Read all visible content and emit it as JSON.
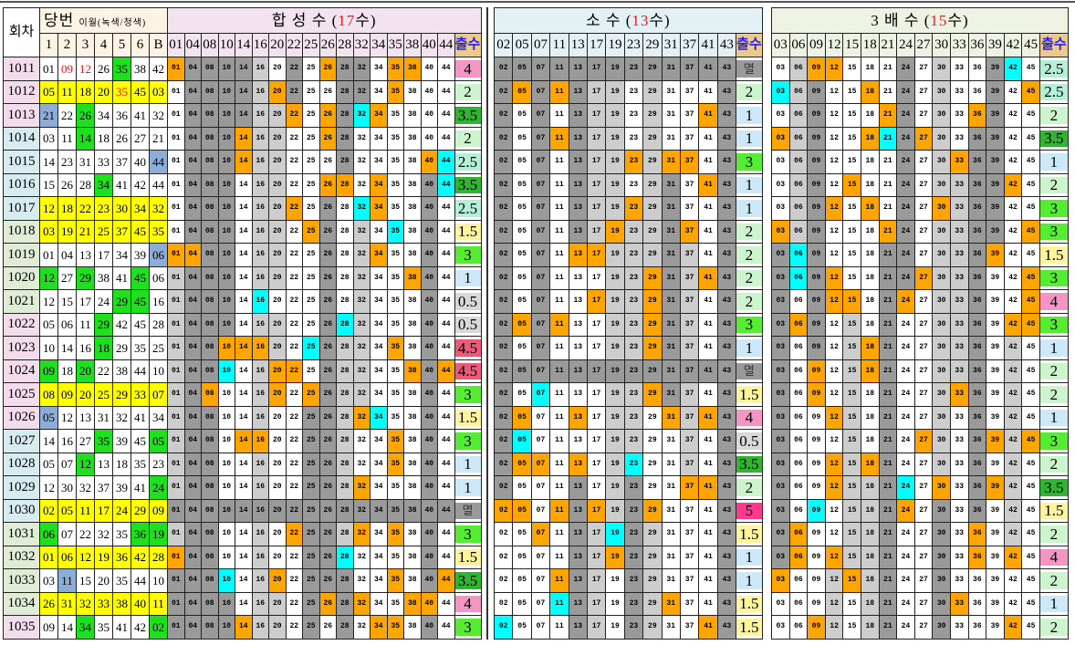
{
  "header": {
    "round": "회차",
    "draw": "당번",
    "draw_note": "이월(녹색/청색)",
    "count_label": "출수",
    "draw_cols": [
      "1",
      "2",
      "3",
      "4",
      "5",
      "6",
      "B"
    ]
  },
  "colors": {
    "orange": "#ffa500",
    "cyan": "#00ffff",
    "dark": "#9a9a9a",
    "light": "#cdcdcd",
    "white": "#ffffff",
    "yellow": "#ffff00",
    "green": "#1ee01e",
    "blue": "#8badd8",
    "red_text": "#f01818"
  },
  "count_colors": {
    "4": "#f595c4",
    "2": "#cdf5cd",
    "3.5": "#2fb52f",
    "2.5": "#b4f0d8",
    "1.5": "#fff49c",
    "3": "#55ec33",
    "1": "#cde8f8",
    "0.5": "#d9d9d9",
    "4.5": "#eb5a78",
    "5": "#ff3a8c",
    "멸": "#9a9a9a"
  },
  "rounds": [
    "1011",
    "1012",
    "1013",
    "1014",
    "1015",
    "1016",
    "1017",
    "1018",
    "1019",
    "1020",
    "1021",
    "1022",
    "1023",
    "1024",
    "1025",
    "1026",
    "1027",
    "1028",
    "1029",
    "1030",
    "1031",
    "1032",
    "1033",
    "1034",
    "1035"
  ],
  "round_colors": [
    "#f3dcec",
    "#f3dcec",
    "#f3dcec",
    "#d6ecf0",
    "#d6ecf0",
    "#d6ecf0",
    "#d6ecf0",
    "#e0ecd6",
    "#e0ecd6",
    "#e0ecd6",
    "#e0ecd6",
    "#f3dcec",
    "#f3dcec",
    "#f3dcec",
    "#f3dcec",
    "#f3dcec",
    "#d6ecf0",
    "#d6ecf0",
    "#d6ecf0",
    "#d6ecf0",
    "#e0ecd6",
    "#e0ecd6",
    "#e0ecd6",
    "#e0ecd6",
    "#f3dcec"
  ],
  "draws": [
    {
      "n": [
        "01",
        "09",
        "12",
        "26",
        "35",
        "38",
        "42"
      ],
      "c": "wwwwgww",
      "red": [
        1,
        2
      ]
    },
    {
      "n": [
        "05",
        "11",
        "18",
        "20",
        "35",
        "45",
        "03"
      ],
      "c": "yyyyyyy",
      "red": [
        4
      ]
    },
    {
      "n": [
        "21",
        "22",
        "26",
        "34",
        "36",
        "41",
        "32"
      ],
      "c": "bwgwwww"
    },
    {
      "n": [
        "03",
        "11",
        "14",
        "18",
        "26",
        "27",
        "21"
      ],
      "c": "wwgwwww"
    },
    {
      "n": [
        "14",
        "23",
        "31",
        "33",
        "37",
        "40",
        "44"
      ],
      "c": "wwwwwwb"
    },
    {
      "n": [
        "15",
        "26",
        "28",
        "34",
        "41",
        "42",
        "44"
      ],
      "c": "wwwgwww"
    },
    {
      "n": [
        "12",
        "18",
        "22",
        "23",
        "30",
        "34",
        "32"
      ],
      "c": "yyyyyyy"
    },
    {
      "n": [
        "03",
        "19",
        "21",
        "25",
        "37",
        "45",
        "35"
      ],
      "c": "yyyyyyy"
    },
    {
      "n": [
        "01",
        "04",
        "13",
        "17",
        "34",
        "39",
        "06"
      ],
      "c": "wwwwwwb"
    },
    {
      "n": [
        "12",
        "27",
        "29",
        "38",
        "41",
        "45",
        "06"
      ],
      "c": "gwgwwgw"
    },
    {
      "n": [
        "12",
        "15",
        "17",
        "24",
        "29",
        "45",
        "16"
      ],
      "c": "wwwwggw"
    },
    {
      "n": [
        "05",
        "06",
        "11",
        "29",
        "42",
        "45",
        "28"
      ],
      "c": "wwwgwww"
    },
    {
      "n": [
        "10",
        "14",
        "16",
        "18",
        "29",
        "35",
        "25"
      ],
      "c": "wwwgwww"
    },
    {
      "n": [
        "09",
        "18",
        "20",
        "22",
        "38",
        "44",
        "10"
      ],
      "c": "gwgwwww"
    },
    {
      "n": [
        "08",
        "09",
        "20",
        "25",
        "29",
        "33",
        "07"
      ],
      "c": "yyyyyyy"
    },
    {
      "n": [
        "05",
        "12",
        "13",
        "31",
        "32",
        "41",
        "34"
      ],
      "c": "bwwwwww"
    },
    {
      "n": [
        "14",
        "16",
        "27",
        "35",
        "39",
        "45",
        "05"
      ],
      "c": "wwwgwwg"
    },
    {
      "n": [
        "05",
        "07",
        "12",
        "13",
        "18",
        "35",
        "23"
      ],
      "c": "wwgwwww"
    },
    {
      "n": [
        "12",
        "30",
        "32",
        "37",
        "39",
        "41",
        "24"
      ],
      "c": "wwwwwwg"
    },
    {
      "n": [
        "02",
        "05",
        "11",
        "17",
        "24",
        "29",
        "09"
      ],
      "c": "yyyyyyy"
    },
    {
      "n": [
        "06",
        "07",
        "22",
        "32",
        "35",
        "36",
        "19"
      ],
      "c": "gwwwwgg"
    },
    {
      "n": [
        "01",
        "06",
        "12",
        "19",
        "36",
        "42",
        "28"
      ],
      "c": "yyyyyyy"
    },
    {
      "n": [
        "03",
        "11",
        "15",
        "20",
        "35",
        "44",
        "10"
      ],
      "c": "wbwwwww"
    },
    {
      "n": [
        "26",
        "31",
        "32",
        "33",
        "38",
        "40",
        "11"
      ],
      "c": "yyyyyyy"
    },
    {
      "n": [
        "09",
        "14",
        "34",
        "35",
        "41",
        "42",
        "02"
      ],
      "c": "wwgwwwg"
    }
  ],
  "sections": [
    {
      "id": "composite",
      "title_prefix": "합 성  수 (",
      "title_count": "17",
      "title_suffix": "수)",
      "bg": "#f3e3ee",
      "cols": [
        "01",
        "04",
        "08",
        "10",
        "14",
        "16",
        "20",
        "22",
        "25",
        "26",
        "28",
        "32",
        "34",
        "35",
        "38",
        "40",
        "44"
      ],
      "cells": [
        "oddddlwdwoddwooww",
        "wddddlodwwddwowww",
        "wddddllowodcowwww",
        "wdddollwwodwwwwww",
        "wdddollwwwdwwwwoc",
        "wdddwllwwoowowwdc",
        "wdddwllowdwcowwdw",
        "wdddwllwodwlwcwdw",
        "ooddwllwwdwlowwdw",
        "ldddwllwwdwlwwodw",
        "ldddwcwwwdwlwwwdw",
        "ldddwllwwdclwwwdw",
        "lddooolwcdllwowdw",
        "lddcwloowdllwwodo",
        "ldowwlowodllwwwdw",
        "lddwwlwwddlocwwdw",
        "lddwoowwddlwwowdw",
        "lddwwlwwddlwwowdw",
        "lddwwlwwddlowwwdw",
        "ddddddddddddddddd",
        "lddwwlwoddlowowdw",
        "oddwwlwwddcwwwwdw",
        "dddcwlowdddwwowdo",
        "ddddwllwdodowwoow",
        "ddddollwdwdwoowdw"
      ],
      "counts": [
        "4",
        "2",
        "3.5",
        "2",
        "2.5",
        "3.5",
        "2.5",
        "1.5",
        "3",
        "1",
        "0.5",
        "0.5",
        "4.5",
        "4.5",
        "3",
        "1.5",
        "3",
        "1",
        "1",
        "멸",
        "3",
        "1.5",
        "3.5",
        "4",
        "3"
      ]
    },
    {
      "id": "prime",
      "title_prefix": "소    수 (",
      "title_count": "13",
      "title_suffix": "수)",
      "bg": "#e3f1f5",
      "cols": [
        "02",
        "05",
        "07",
        "11",
        "13",
        "17",
        "19",
        "23",
        "29",
        "31",
        "37",
        "41",
        "43"
      ],
      "cells": [
        "ddddddddddddd",
        "dododllwlwwwd",
        "dwdwdllwlwwod",
        "dwdodllwlwwwd",
        "dwdwdlloloowd",
        "dwdwdllwldwod",
        "dwdwdlloldwwd",
        "dwdwdlolldowd",
        "dwdwoollldlwd",
        "dwdwwwllodlod",
        "dwdwwollodlwd",
        "dodowwllodlwd",
        "dwdwwwllodlwd",
        "ddddddddddddd",
        "dwcwwwllodlwd",
        "dowwowllwolod",
        "dcwwwwllwwlwd",
        "doowowlcwwlwd",
        "dwwwdwldwwood",
        "oowodoldowwwd",
        "wwowdlcdlwwwd",
        "wwwwdlodlwwwd",
        "wwwodlwdlwwwd",
        "wwwcdlwdlowwd",
        "cwwwdlwdlwwod"
      ],
      "counts": [
        "멸",
        "2",
        "1",
        "1",
        "3",
        "1",
        "1",
        "2",
        "2",
        "2",
        "2",
        "3",
        "1",
        "멸",
        "1.5",
        "4",
        "0.5",
        "3.5",
        "2",
        "5",
        "1.5",
        "1",
        "1",
        "1.5",
        "1.5"
      ]
    },
    {
      "id": "multiple3",
      "title_prefix": "3   배   수 (",
      "title_count": "15",
      "title_suffix": "수)",
      "bg": "#eef2e2",
      "cols": [
        "03",
        "06",
        "09",
        "12",
        "15",
        "18",
        "21",
        "24",
        "27",
        "30",
        "33",
        "36",
        "39",
        "42",
        "45"
      ],
      "cells": [
        "wloowwwdwlwwdcw",
        "cldwwowdwlwwdwo",
        "wldwwwodwlwodww",
        "oldwwocdolwddww",
        "wldwwwwdwloddww",
        "wldwowwdwllddow",
        "wldowowdwolddww",
        "oldwwwodwllddwo",
        "dcdwwwddwlldoww",
        "dcdowwddolldwwo",
        "dwdoowdowlldwwo",
        "dodwlwdwwlldwoo",
        "dwdwlodwwlldwlw",
        "dwowlodwwlldwlw",
        "dwowlwdwwlodwlw",
        "dwwolwdwwlwdwlw",
        "dwwwlwdwolwdolo",
        "dwwolodwwlwdwlw",
        "dwwolldcwowdolw",
        "dwcwlldowdwdwlw",
        "dowwlldwwdwowlw",
        "dowolldwwdwowow",
        "owwloldwwdwwwww",
        "wwwlwldwwdowwww",
        "wwolwldwwdwwwow"
      ],
      "counts": [
        "2.5",
        "2.5",
        "2",
        "3.5",
        "1",
        "2",
        "3",
        "3",
        "1.5",
        "3",
        "4",
        "3",
        "1",
        "2",
        "2",
        "1",
        "3",
        "2",
        "3.5",
        "1.5",
        "2",
        "4",
        "2",
        "1",
        "2"
      ]
    }
  ]
}
